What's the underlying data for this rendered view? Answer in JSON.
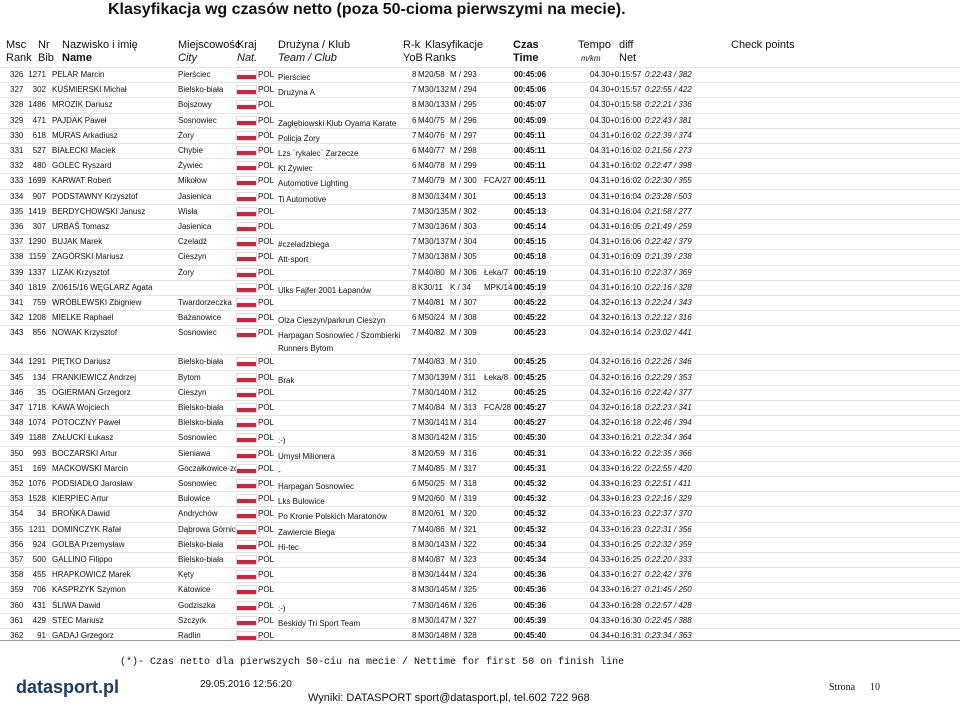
{
  "header": {
    "title": "Klasyfikacja wg czasów netto (poza 50-cioma pierwszymi na mecie).",
    "labels1": [
      "Msc",
      "Nr",
      "Nazwisko i imię",
      "Miejscowość",
      "Kraj",
      "Drużyna / Klub",
      "R-k",
      "Klasyfikacje",
      "Czas",
      "Tempo",
      "diff",
      "Check points"
    ],
    "labels2": [
      "Rank",
      "Bib",
      "Name",
      "City",
      "Nat.",
      "Team / Club",
      "YoB",
      "Ranks",
      "Time",
      "m/km",
      "Net"
    ]
  },
  "table": {
    "rows": [
      [
        "326",
        "1271",
        "PELAR Marcin",
        "Pierściec",
        "POL",
        "Pierściec",
        "8",
        "M20/58",
        "M / 293",
        null,
        "00:45:06",
        "04.30",
        "+0:15:57",
        "0:22:43 / 382"
      ],
      [
        "327",
        "302",
        "KUŚMIERSKI Michał",
        "Bielsko-biała",
        "POL",
        "Drużyna A",
        "7",
        "M30/132",
        "M / 294",
        null,
        "00:45:06",
        "04.30",
        "+0:15:57",
        "0:22:55 / 422"
      ],
      [
        "328",
        "1486",
        "MROZIK Dariusz",
        "Bojszowy",
        "POL",
        null,
        "8",
        "M30/133",
        "M / 295",
        null,
        "00:45:07",
        "04.30",
        "+0:15:58",
        "0:22:21 / 336"
      ],
      [
        "329",
        "471",
        "PAJDAK Paweł",
        "Sosnowiec",
        "POL",
        "Zagłębiowski Klub Oyama Karate",
        "6",
        "M40/75",
        "M / 296",
        null,
        "00:45:09",
        "04.30",
        "+0:16:00",
        "0:22:43 / 381"
      ],
      [
        "330",
        "618",
        "MURAS Arkadiusz",
        "Żory",
        "POL",
        "Policja Żory",
        "7",
        "M40/76",
        "M / 297",
        null,
        "00:45:11",
        "04.31",
        "+0:16:02",
        "0:22:39 / 374"
      ],
      [
        "331",
        "527",
        "BIAŁECKI Maciek",
        "Chybie",
        "POL",
        "Lzs `rykalec` Zarzecze",
        "6",
        "M40/77",
        "M / 298",
        null,
        "00:45:11",
        "04.31",
        "+0:16:02",
        "0:21:56 / 273"
      ],
      [
        "332",
        "480",
        "GOLEC Ryszard",
        "Żywiec",
        "POL",
        "Kt Żywiec",
        "6",
        "M40/78",
        "M / 299",
        null,
        "00:45:11",
        "04.31",
        "+0:16:02",
        "0:22:47 / 398"
      ],
      [
        "333",
        "1699",
        "KARWAT Robert",
        "Mikołow",
        "POL",
        "Automotive Lighting",
        "7",
        "M40/79",
        "M / 300",
        "FCA/27",
        "00:45:11",
        "04.31",
        "+0:16:02",
        "0:22:30 / 355"
      ],
      [
        "334",
        "907",
        "PODSTAWNY Krzysztof",
        "Jasienica",
        "POL",
        "Ti Automotive",
        "8",
        "M30/134",
        "M / 301",
        null,
        "00:45:13",
        "04.31",
        "+0:16:04",
        "0:23:28 / 503"
      ],
      [
        "335",
        "1419",
        "BERDYCHOWSKI Janusz",
        "Wisła",
        "POL",
        null,
        "7",
        "M30/135",
        "M / 302",
        null,
        "00:45:13",
        "04.31",
        "+0:16:04",
        "0:21:58 / 277"
      ],
      [
        "336",
        "307",
        "URBAŚ Tomasz",
        "Jasienica",
        "POL",
        null,
        "7",
        "M30/136",
        "M / 303",
        null,
        "00:45:14",
        "04.31",
        "+0:16:05",
        "0:21:49 / 259"
      ],
      [
        "337",
        "1290",
        "BUJAK Marek",
        "Czeladź",
        "POL",
        "#czeladzbiega",
        "7",
        "M30/137",
        "M / 304",
        null,
        "00:45:15",
        "04.31",
        "+0:16:06",
        "0:22:42 / 379"
      ],
      [
        "338",
        "1159",
        "ZAGÓRSKI Mariusz",
        "Cieszyn",
        "POL",
        "Att-sport",
        "7",
        "M30/138",
        "M / 305",
        null,
        "00:45:18",
        "04.31",
        "+0:16:09",
        "0:21:39 / 238"
      ],
      [
        "339",
        "1337",
        "LIZAK Krzysztof",
        "Żory",
        "POL",
        null,
        "7",
        "M40/80",
        "M / 306",
        "Łeka/7",
        "00:45:19",
        "04.31",
        "+0:16:10",
        "0:22:37 / 369"
      ],
      [
        "340",
        "1819",
        "Z/0615/16 WĘGLARZ Agata",
        null,
        "POL",
        "Ulks Fajfer 2001 Łapanów",
        "8",
        "K30/11",
        "K / 34",
        "MPK/14",
        "00:45:19",
        "04.31",
        "+0:16:10",
        "0:22:16 / 328"
      ],
      [
        "341",
        "759",
        "WRÓBLEWSKI Zbigniew",
        "Twardorzeczka",
        "POL",
        null,
        "7",
        "M40/81",
        "M / 307",
        null,
        "00:45:22",
        "04.32",
        "+0:16:13",
        "0:22:24 / 343"
      ],
      [
        "342",
        "1208",
        "MIELKE Raphael",
        "Bażanowice",
        "POL",
        "Olza Cieszyn/parkrun Cieszyn",
        "6",
        "M50/24",
        "M / 308",
        null,
        "00:45:22",
        "04.32",
        "+0:16:13",
        "0:22:12 / 316"
      ],
      [
        "343",
        "856",
        "NOWAK Krzysztof",
        "Sosnowiec",
        "POL",
        "Harpagan Sosnowiec / Szombierki Runners Bytom",
        "7",
        "M40/82",
        "M / 309",
        null,
        "00:45:23",
        "04.32",
        "+0:16:14",
        "0:23:02 / 441"
      ],
      [
        "344",
        "1291",
        "PIĘTKO Dariusz",
        "Bielsko-biała",
        "POL",
        null,
        "7",
        "M40/83",
        "M / 310",
        null,
        "00:45:25",
        "04.32",
        "+0:16:16",
        "0:22:26 / 346"
      ],
      [
        "345",
        "134",
        "FRANKIEWICZ Andrzej",
        "Bytom",
        "POL",
        "Brak",
        "7",
        "M30/139",
        "M / 311",
        "Łeka/8",
        "00:45:25",
        "04.32",
        "+0:16:16",
        "0:22:29 / 353"
      ],
      [
        "346",
        "35",
        "OGIERMAN Grzegorz",
        "Cieszyn",
        "POL",
        null,
        "7",
        "M30/140",
        "M / 312",
        null,
        "00:45:25",
        "04.32",
        "+0:16:16",
        "0:22:42 / 377"
      ],
      [
        "347",
        "1718",
        "KAWA Wojciech",
        "Bielsko-biała",
        "POL",
        null,
        "7",
        "M40/84",
        "M / 313",
        "FCA/28",
        "00:45:27",
        "04.32",
        "+0:16:18",
        "0:22:23 / 341"
      ],
      [
        "348",
        "1074",
        "POTOCZNY Paweł",
        "Bielsko-biała",
        "POL",
        null,
        "7",
        "M30/141",
        "M / 314",
        null,
        "00:45:27",
        "04.32",
        "+0:16:18",
        "0:22:46 / 394"
      ],
      [
        "349",
        "1188",
        "ZAŁUCKI Łukasz",
        "Sosnowiec",
        "POL",
        ":-)",
        "8",
        "M30/142",
        "M / 315",
        null,
        "00:45:30",
        "04.33",
        "+0:16:21",
        "0:22:34 / 364"
      ],
      [
        "350",
        "993",
        "BOCZARSKI Artur",
        "Sieniawa",
        "POL",
        "Umysł Milionera",
        "8",
        "M20/59",
        "M / 316",
        null,
        "00:45:31",
        "04.33",
        "+0:16:22",
        "0:22:35 / 366"
      ],
      [
        "351",
        "169",
        "MAĆKOWSKI Marcin",
        "Goczałkowice-zdrój",
        "POL",
        "-",
        "7",
        "M40/85",
        "M / 317",
        null,
        "00:45:31",
        "04.33",
        "+0:16:22",
        "0:22:55 / 420"
      ],
      [
        "352",
        "1076",
        "PODSIADŁO Jarosław",
        "Sosnowiec",
        "POL",
        "Harpagan Sosnowiec",
        "6",
        "M50/25",
        "M / 318",
        null,
        "00:45:32",
        "04.33",
        "+0:16:23",
        "0:22:51 / 411"
      ],
      [
        "353",
        "1528",
        "KIERPIEC Artur",
        "Bulowice",
        "POL",
        "Lks Bulowice",
        "9",
        "M20/60",
        "M / 319",
        null,
        "00:45:32",
        "04.33",
        "+0:16:23",
        "0:22:16 / 329"
      ],
      [
        "354",
        "34",
        "BROŃKA Dawid",
        "Andrychów",
        "POL",
        "Po Kronie Polskich Maratonów",
        "8",
        "M20/61",
        "M / 320",
        null,
        "00:45:32",
        "04.33",
        "+0:16:23",
        "0:22:37 / 370"
      ],
      [
        "355",
        "1211",
        "DOMIŃCZYK Rafał",
        "Dąbrowa Górnicza",
        "POL",
        "Zawiercie Biega",
        "7",
        "M40/86",
        "M / 321",
        null,
        "00:45:32",
        "04.33",
        "+0:16:23",
        "0:22:31 / 356"
      ],
      [
        "356",
        "924",
        "GOLBA Przemysław",
        "Bielsko-biała",
        "POL",
        "Hi-tec",
        "8",
        "M30/143",
        "M / 322",
        null,
        "00:45:34",
        "04.33",
        "+0:16:25",
        "0:22:32 / 359"
      ],
      [
        "357",
        "500",
        "GALLINO Filippo",
        "Bielsko-biała",
        "POL",
        null,
        "8",
        "M40/87",
        "M / 323",
        null,
        "00:45:34",
        "04.33",
        "+0:16:25",
        "0:22:20 / 333"
      ],
      [
        "358",
        "455",
        "HRAPKOWICZ Marek",
        "Kęty",
        "POL",
        null,
        "8",
        "M30/144",
        "M / 324",
        null,
        "00:45:36",
        "04.33",
        "+0:16:27",
        "0:22:42 / 376"
      ],
      [
        "359",
        "706",
        "KASPRZYK Szymon",
        "Katowice",
        "POL",
        null,
        "8",
        "M30/145",
        "M / 325",
        null,
        "00:45:36",
        "04.33",
        "+0:16:27",
        "0:21:45 / 250"
      ],
      [
        "360",
        "431",
        "ŚLIWA Dawid",
        "Godziszka",
        "POL",
        ":-)",
        "7",
        "M30/146",
        "M / 326",
        null,
        "00:45:36",
        "04.33",
        "+0:16:28",
        "0:22:57 / 428"
      ],
      [
        "361",
        "429",
        "STEC Mariusz",
        "Szczyrk",
        "POL",
        "Beskidy Tri Sport Team",
        "8",
        "M30/147",
        "M / 327",
        null,
        "00:45:39",
        "04.33",
        "+0:16:30",
        "0:22:45 / 388"
      ],
      [
        "362",
        "91",
        "GADAJ Grzegorz",
        "Radlin",
        "POL",
        null,
        "8",
        "M30/148",
        "M / 328",
        null,
        "00:45:40",
        "04.34",
        "+0:16:31",
        "0:23:34 / 363"
      ]
    ]
  },
  "footer": {
    "note": "(*)- Czas netto dla pierwszych 50-ciu na mecie / Nettime for first 50 on finish line",
    "logo": "datasport.pl",
    "date": "29.05.2016 12:56:20",
    "contact": "Wyniki: DATASPORT sport@datasport.pl, tel.602 722 968",
    "page_label": "Strona",
    "page": "10"
  }
}
